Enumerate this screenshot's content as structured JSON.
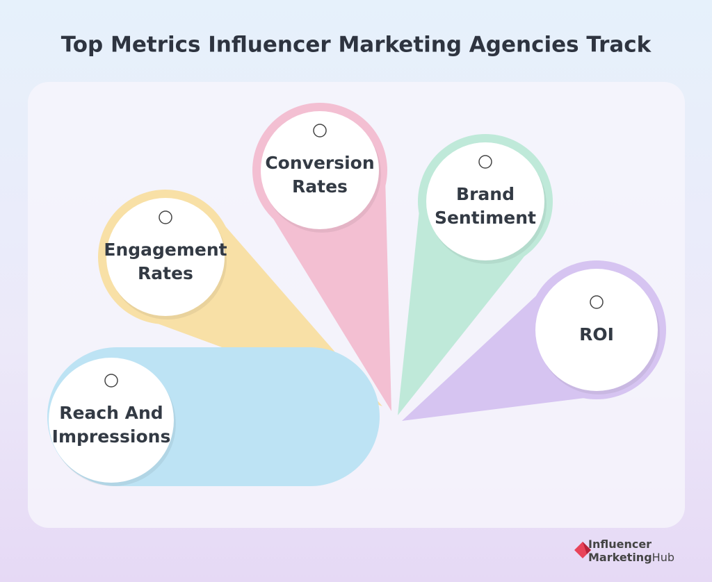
{
  "title": "Top Metrics Influencer Marketing Agencies Track",
  "metrics": [
    {
      "lines": [
        "Reach And",
        "Impressions"
      ]
    },
    {
      "lines": [
        "Engagement",
        "Rates"
      ]
    },
    {
      "lines": [
        "Conversion",
        "Rates"
      ]
    },
    {
      "lines": [
        "Brand",
        "Sentiment"
      ]
    },
    {
      "lines": [
        "ROI"
      ]
    }
  ],
  "logo": {
    "line1": "Influencer",
    "line2a": "Marketing",
    "line2b": "Hub"
  }
}
